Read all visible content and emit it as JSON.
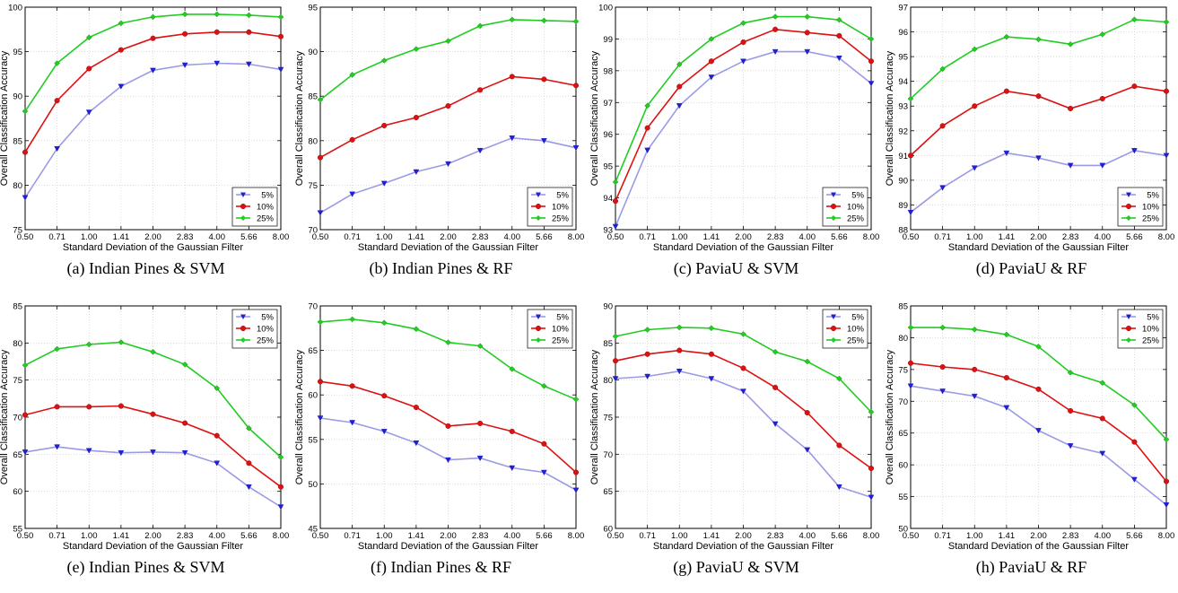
{
  "x_tick_labels": [
    "0.50",
    "0.71",
    "1.00",
    "1.41",
    "2.00",
    "2.83",
    "4.00",
    "5.66",
    "8.00"
  ],
  "xlabel": "Standard Deviation of the Gaussian Filter",
  "ylabel": "Overall Classification Accuracy",
  "legend_labels": [
    "5%",
    "10%",
    "25%"
  ],
  "colors": {
    "5%": "#9a9ae6",
    "10%": "#dd1111",
    "25%": "#22cc22"
  },
  "marker_colors": {
    "5%": "#2020cc",
    "10%": "#dd1111",
    "25%": "#22cc22"
  },
  "chart_data": [
    {
      "type": "line",
      "caption": "(a) Indian Pines & SVM",
      "ylim": [
        75,
        100
      ],
      "yticks": [
        "75",
        "80",
        "85",
        "90",
        "95",
        "100"
      ],
      "legend": "bottom-right",
      "grid": true,
      "series": [
        {
          "name": "5%",
          "values": [
            78.6,
            84.1,
            88.2,
            91.1,
            92.9,
            93.5,
            93.7,
            93.6,
            93.0
          ]
        },
        {
          "name": "10%",
          "values": [
            83.7,
            89.5,
            93.1,
            95.2,
            96.5,
            97.0,
            97.2,
            97.2,
            96.7
          ]
        },
        {
          "name": "25%",
          "values": [
            88.3,
            93.7,
            96.6,
            98.2,
            98.9,
            99.2,
            99.2,
            99.1,
            98.9
          ]
        }
      ]
    },
    {
      "type": "line",
      "caption": "(b) Indian Pines & RF",
      "ylim": [
        70,
        95
      ],
      "yticks": [
        "70",
        "75",
        "80",
        "85",
        "90",
        "95"
      ],
      "legend": "bottom-right",
      "grid": true,
      "series": [
        {
          "name": "5%",
          "values": [
            71.9,
            74.0,
            75.2,
            76.5,
            77.4,
            78.9,
            80.3,
            80.0,
            79.2
          ]
        },
        {
          "name": "10%",
          "values": [
            78.1,
            80.1,
            81.7,
            82.6,
            83.9,
            85.7,
            87.2,
            86.9,
            86.2
          ]
        },
        {
          "name": "25%",
          "values": [
            84.6,
            87.4,
            89.0,
            90.3,
            91.2,
            92.9,
            93.6,
            93.5,
            93.4
          ]
        }
      ]
    },
    {
      "type": "line",
      "caption": "(c) PaviaU & SVM",
      "ylim": [
        93,
        100
      ],
      "yticks": [
        "93",
        "94",
        "95",
        "96",
        "97",
        "98",
        "99",
        "100"
      ],
      "legend": "bottom-right",
      "grid": true,
      "series": [
        {
          "name": "5%",
          "values": [
            93.1,
            95.5,
            96.9,
            97.8,
            98.3,
            98.6,
            98.6,
            98.4,
            97.6
          ]
        },
        {
          "name": "10%",
          "values": [
            93.9,
            96.2,
            97.5,
            98.3,
            98.9,
            99.3,
            99.2,
            99.1,
            98.3
          ]
        },
        {
          "name": "25%",
          "values": [
            94.5,
            96.9,
            98.2,
            99.0,
            99.5,
            99.7,
            99.7,
            99.6,
            99.0
          ]
        }
      ]
    },
    {
      "type": "line",
      "caption": "(d) PaviaU & RF",
      "ylim": [
        88,
        97
      ],
      "yticks": [
        "88",
        "89",
        "90",
        "91",
        "92",
        "93",
        "94",
        "95",
        "96",
        "97"
      ],
      "legend": "bottom-right",
      "grid": true,
      "series": [
        {
          "name": "5%",
          "values": [
            88.7,
            89.7,
            90.5,
            91.1,
            90.9,
            90.6,
            90.6,
            91.2,
            91.0
          ]
        },
        {
          "name": "10%",
          "values": [
            91.0,
            92.2,
            93.0,
            93.6,
            93.4,
            92.9,
            93.3,
            93.8,
            93.6
          ]
        },
        {
          "name": "25%",
          "values": [
            93.3,
            94.5,
            95.3,
            95.8,
            95.7,
            95.5,
            95.9,
            96.5,
            96.4
          ]
        }
      ]
    },
    {
      "type": "line",
      "caption": "(e) Indian Pines & SVM",
      "ylim": [
        55,
        85
      ],
      "yticks": [
        "55",
        "60",
        "65",
        "70",
        "75",
        "80",
        "85"
      ],
      "legend": "top-right",
      "grid": true,
      "series": [
        {
          "name": "5%",
          "values": [
            65.3,
            66.0,
            65.5,
            65.2,
            65.3,
            65.2,
            63.8,
            60.6,
            57.9
          ]
        },
        {
          "name": "10%",
          "values": [
            70.3,
            71.4,
            71.4,
            71.5,
            70.4,
            69.2,
            67.5,
            63.8,
            60.6
          ]
        },
        {
          "name": "25%",
          "values": [
            77.0,
            79.2,
            79.8,
            80.1,
            78.8,
            77.1,
            73.9,
            68.5,
            64.6
          ]
        }
      ]
    },
    {
      "type": "line",
      "caption": "(f) Indian Pines & RF",
      "ylim": [
        45,
        70
      ],
      "yticks": [
        "45",
        "50",
        "55",
        "60",
        "65",
        "70"
      ],
      "legend": "top-right",
      "grid": true,
      "series": [
        {
          "name": "5%",
          "values": [
            57.4,
            56.9,
            55.9,
            54.6,
            52.7,
            52.9,
            51.8,
            51.3,
            49.3
          ]
        },
        {
          "name": "10%",
          "values": [
            61.5,
            61.0,
            59.9,
            58.6,
            56.5,
            56.8,
            55.9,
            54.5,
            51.3
          ]
        },
        {
          "name": "25%",
          "values": [
            68.2,
            68.5,
            68.1,
            67.4,
            65.9,
            65.5,
            62.9,
            61.0,
            59.5
          ]
        }
      ]
    },
    {
      "type": "line",
      "caption": "(g) PaviaU & SVM",
      "ylim": [
        60,
        90
      ],
      "yticks": [
        "60",
        "65",
        "70",
        "75",
        "80",
        "85",
        "90"
      ],
      "legend": "top-right",
      "grid": true,
      "series": [
        {
          "name": "5%",
          "values": [
            80.2,
            80.5,
            81.2,
            80.2,
            78.5,
            74.1,
            70.6,
            65.6,
            64.2
          ]
        },
        {
          "name": "10%",
          "values": [
            82.6,
            83.5,
            84.0,
            83.5,
            81.6,
            79.0,
            75.6,
            71.2,
            68.1
          ]
        },
        {
          "name": "25%",
          "values": [
            85.9,
            86.8,
            87.1,
            87.0,
            86.2,
            83.8,
            82.5,
            80.2,
            75.7
          ]
        }
      ]
    },
    {
      "type": "line",
      "caption": "(h) PaviaU & RF",
      "ylim": [
        50,
        85
      ],
      "yticks": [
        "50",
        "55",
        "60",
        "65",
        "70",
        "75",
        "80",
        "85"
      ],
      "legend": "top-right",
      "grid": true,
      "series": [
        {
          "name": "5%",
          "values": [
            72.4,
            71.6,
            70.8,
            69.0,
            65.4,
            63.0,
            61.8,
            57.7,
            53.7
          ]
        },
        {
          "name": "10%",
          "values": [
            76.0,
            75.4,
            75.0,
            73.7,
            71.9,
            68.5,
            67.3,
            63.6,
            57.4
          ]
        },
        {
          "name": "25%",
          "values": [
            81.6,
            81.6,
            81.3,
            80.5,
            78.6,
            74.5,
            72.9,
            69.4,
            64.0
          ]
        }
      ]
    }
  ]
}
